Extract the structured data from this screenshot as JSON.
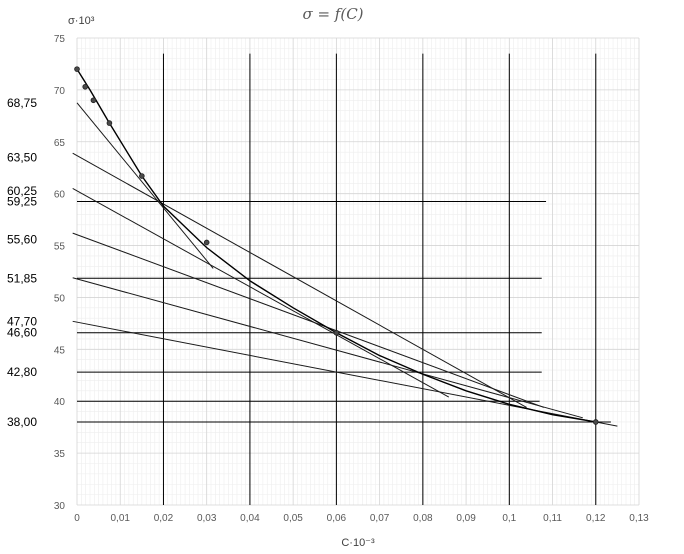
{
  "chart_data": {
    "type": "scatter",
    "title": "σ = f(C)",
    "xlabel": "C·10⁻³",
    "ylabel": "σ·10³",
    "xlim": [
      0,
      0.13
    ],
    "ylim": [
      30,
      75
    ],
    "xticks": [
      "0",
      "0,01",
      "0,02",
      "0,03",
      "0,04",
      "0,05",
      "0,06",
      "0,07",
      "0,08",
      "0,09",
      "0,1",
      "0,11",
      "0,12",
      "0,13"
    ],
    "yticks": [
      "30",
      "35",
      "40",
      "45",
      "50",
      "55",
      "60",
      "65",
      "70",
      "75"
    ],
    "grid": true,
    "points": [
      {
        "x": 0.0,
        "y": 72.0
      },
      {
        "x": 0.0019,
        "y": 70.3
      },
      {
        "x": 0.0038,
        "y": 69.0
      },
      {
        "x": 0.0075,
        "y": 66.8
      },
      {
        "x": 0.015,
        "y": 61.7
      },
      {
        "x": 0.03,
        "y": 55.3
      },
      {
        "x": 0.06,
        "y": 46.6
      },
      {
        "x": 0.12,
        "y": 38.0
      }
    ],
    "curve": [
      [
        0.0,
        72.0
      ],
      [
        0.003,
        70.0
      ],
      [
        0.0075,
        66.8
      ],
      [
        0.015,
        61.7
      ],
      [
        0.02,
        58.8
      ],
      [
        0.03,
        54.8
      ],
      [
        0.04,
        51.6
      ],
      [
        0.05,
        49.0
      ],
      [
        0.06,
        46.6
      ],
      [
        0.07,
        44.4
      ],
      [
        0.08,
        42.6
      ],
      [
        0.09,
        41.0
      ],
      [
        0.1,
        39.7
      ],
      [
        0.11,
        38.7
      ],
      [
        0.12,
        38.0
      ]
    ],
    "tangents": [
      {
        "from": [
          0.0,
          68.75
        ],
        "to": [
          0.0315,
          52.8
        ]
      },
      {
        "from": [
          -0.001,
          63.9
        ],
        "to": [
          0.104,
          39.4
        ]
      },
      {
        "from": [
          -0.001,
          60.5
        ],
        "to": [
          0.086,
          40.4
        ]
      },
      {
        "from": [
          -0.001,
          56.2
        ],
        "to": [
          0.108,
          39.4
        ]
      },
      {
        "from": [
          -0.001,
          51.9
        ],
        "to": [
          0.117,
          38.4
        ]
      },
      {
        "from": [
          -0.001,
          47.7
        ],
        "to": [
          0.125,
          37.6
        ]
      }
    ],
    "intercept_labels": [
      "68,75",
      "63,50",
      "60,25",
      "59,25",
      "55,60",
      "51,85",
      "47,70",
      "46,60",
      "42,80",
      "38,00"
    ],
    "level_lines": [
      {
        "y": 59.25,
        "x_end": 0.1085
      },
      {
        "y": 51.85,
        "x_end": 0.1075
      },
      {
        "y": 46.6,
        "x_end": 0.1075
      },
      {
        "y": 42.8,
        "x_end": 0.1075
      },
      {
        "y": 40.0,
        "x_end": 0.107
      },
      {
        "y": 38.0,
        "x_end": 0.1235
      }
    ],
    "vertical_lines": [
      0.02,
      0.04,
      0.06,
      0.08,
      0.1,
      0.12
    ]
  }
}
